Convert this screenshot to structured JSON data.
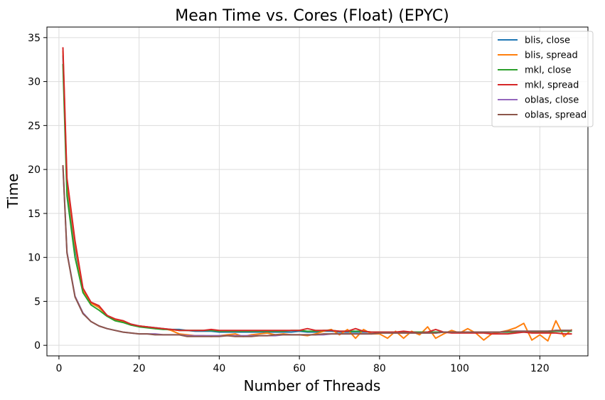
{
  "chart_data": {
    "type": "line",
    "title": "Mean Time vs. Cores (Float) (EPYC)",
    "xlabel": "Number of Threads",
    "ylabel": "Time",
    "xlim": [
      -3,
      132
    ],
    "ylim": [
      -1.2,
      36.2
    ],
    "xticks": [
      0,
      20,
      40,
      60,
      80,
      100,
      120
    ],
    "yticks": [
      0,
      5,
      10,
      15,
      20,
      25,
      30,
      35
    ],
    "grid": true,
    "legend_position": "top-right",
    "series": [
      {
        "name": "blis, close",
        "color": "#1f77b4",
        "x": [
          1,
          2,
          4,
          6,
          8,
          10,
          12,
          14,
          16,
          18,
          20,
          22,
          24,
          26,
          28,
          30,
          32,
          34,
          36,
          38,
          40,
          42,
          44,
          46,
          48,
          50,
          52,
          54,
          56,
          58,
          60,
          62,
          64,
          66,
          68,
          70,
          72,
          74,
          76,
          78,
          80,
          82,
          84,
          86,
          88,
          90,
          92,
          94,
          96,
          98,
          100,
          102,
          104,
          106,
          108,
          110,
          112,
          114,
          116,
          118,
          120,
          122,
          124,
          126,
          128
        ],
        "y": [
          33.0,
          18.0,
          11.0,
          6.3,
          4.8,
          4.4,
          3.4,
          2.9,
          2.7,
          2.4,
          2.2,
          2.1,
          2.0,
          1.9,
          1.8,
          1.8,
          1.7,
          1.6,
          1.6,
          1.6,
          1.5,
          1.5,
          1.5,
          1.5,
          1.5,
          1.5,
          1.5,
          1.5,
          1.5,
          1.5,
          1.6,
          1.5,
          1.5,
          1.6,
          1.6,
          1.5,
          1.5,
          1.5,
          1.5,
          1.5,
          1.5,
          1.5,
          1.5,
          1.5,
          1.5,
          1.5,
          1.5,
          1.5,
          1.5,
          1.5,
          1.5,
          1.5,
          1.5,
          1.5,
          1.5,
          1.5,
          1.5,
          1.6,
          1.6,
          1.6,
          1.6,
          1.6,
          1.6,
          1.6,
          1.7
        ]
      },
      {
        "name": "blis, spread",
        "color": "#ff7f0e",
        "x": [
          1,
          2,
          4,
          6,
          8,
          10,
          12,
          14,
          16,
          18,
          20,
          22,
          24,
          26,
          28,
          30,
          32,
          34,
          36,
          38,
          40,
          42,
          44,
          46,
          48,
          50,
          52,
          54,
          56,
          58,
          60,
          62,
          64,
          66,
          68,
          70,
          72,
          74,
          76,
          78,
          80,
          82,
          84,
          86,
          88,
          90,
          92,
          94,
          96,
          98,
          100,
          102,
          104,
          106,
          108,
          110,
          112,
          114,
          116,
          118,
          120,
          122,
          124,
          126,
          128
        ],
        "y": [
          33.5,
          18.5,
          11.5,
          6.2,
          4.8,
          4.3,
          3.4,
          2.9,
          2.7,
          2.3,
          2.2,
          2.1,
          1.9,
          1.9,
          1.7,
          1.3,
          1.2,
          1.1,
          1.1,
          1.0,
          1.1,
          1.2,
          1.3,
          1.0,
          1.2,
          1.3,
          1.4,
          1.2,
          1.3,
          1.2,
          1.2,
          1.1,
          1.3,
          1.6,
          1.8,
          1.2,
          1.8,
          0.8,
          1.8,
          1.3,
          1.3,
          0.8,
          1.6,
          0.8,
          1.6,
          1.2,
          2.1,
          0.8,
          1.3,
          1.7,
          1.4,
          1.9,
          1.4,
          0.6,
          1.3,
          1.5,
          1.7,
          2.0,
          2.5,
          0.6,
          1.2,
          0.5,
          2.8,
          1.0,
          1.8
        ]
      },
      {
        "name": "mkl, close",
        "color": "#2ca02c",
        "x": [
          1,
          2,
          4,
          6,
          8,
          10,
          12,
          14,
          16,
          18,
          20,
          22,
          24,
          26,
          28,
          30,
          32,
          34,
          36,
          38,
          40,
          42,
          44,
          46,
          48,
          50,
          52,
          54,
          56,
          58,
          60,
          62,
          64,
          66,
          68,
          70,
          72,
          74,
          76,
          78,
          80,
          82,
          84,
          86,
          88,
          90,
          92,
          94,
          96,
          98,
          100,
          102,
          104,
          106,
          108,
          110,
          112,
          114,
          116,
          118,
          120,
          122,
          124,
          126,
          128
        ],
        "y": [
          32.0,
          17.0,
          10.0,
          6.0,
          4.6,
          4.0,
          3.3,
          2.8,
          2.6,
          2.3,
          2.1,
          2.0,
          1.9,
          1.8,
          1.8,
          1.7,
          1.7,
          1.7,
          1.7,
          1.7,
          1.6,
          1.6,
          1.6,
          1.6,
          1.6,
          1.6,
          1.6,
          1.6,
          1.6,
          1.7,
          1.7,
          1.6,
          1.6,
          1.7,
          1.7,
          1.6,
          1.6,
          1.6,
          1.6,
          1.5,
          1.5,
          1.5,
          1.5,
          1.5,
          1.5,
          1.5,
          1.5,
          1.5,
          1.5,
          1.5,
          1.5,
          1.5,
          1.5,
          1.5,
          1.5,
          1.5,
          1.5,
          1.5,
          1.5,
          1.5,
          1.5,
          1.5,
          1.6,
          1.6,
          1.6
        ]
      },
      {
        "name": "mkl, spread",
        "color": "#d62728",
        "x": [
          1,
          2,
          4,
          6,
          8,
          10,
          12,
          14,
          16,
          18,
          20,
          22,
          24,
          26,
          28,
          30,
          32,
          34,
          36,
          38,
          40,
          42,
          44,
          46,
          48,
          50,
          52,
          54,
          56,
          58,
          60,
          62,
          64,
          66,
          68,
          70,
          72,
          74,
          76,
          78,
          80,
          82,
          84,
          86,
          88,
          90,
          92,
          94,
          96,
          98,
          100,
          102,
          104,
          106,
          108,
          110,
          112,
          114,
          116,
          118,
          120,
          122,
          124,
          126,
          128
        ],
        "y": [
          33.9,
          19.0,
          11.9,
          6.5,
          4.9,
          4.5,
          3.4,
          3.0,
          2.8,
          2.4,
          2.2,
          2.1,
          2.0,
          1.9,
          1.8,
          1.7,
          1.7,
          1.7,
          1.7,
          1.8,
          1.7,
          1.7,
          1.7,
          1.7,
          1.7,
          1.7,
          1.7,
          1.7,
          1.7,
          1.7,
          1.7,
          1.9,
          1.7,
          1.7,
          1.7,
          1.6,
          1.6,
          1.9,
          1.6,
          1.5,
          1.5,
          1.5,
          1.5,
          1.6,
          1.5,
          1.4,
          1.5,
          1.8,
          1.5,
          1.4,
          1.4,
          1.4,
          1.4,
          1.4,
          1.3,
          1.3,
          1.3,
          1.4,
          1.5,
          1.4,
          1.4,
          1.4,
          1.4,
          1.3,
          1.3
        ]
      },
      {
        "name": "oblas, close",
        "color": "#9467bd",
        "x": [
          1,
          2,
          4,
          6,
          8,
          10,
          12,
          14,
          16,
          18,
          20,
          22,
          24,
          26,
          28,
          30,
          32,
          34,
          36,
          38,
          40,
          42,
          44,
          46,
          48,
          50,
          52,
          54,
          56,
          58,
          60,
          62,
          64,
          66,
          68,
          70,
          72,
          74,
          76,
          78,
          80,
          82,
          84,
          86,
          88,
          90,
          92,
          94,
          96,
          98,
          100,
          102,
          104,
          106,
          108,
          110,
          112,
          114,
          116,
          118,
          120,
          122,
          124,
          126,
          128
        ],
        "y": [
          20.4,
          10.6,
          5.6,
          3.7,
          2.7,
          2.2,
          1.9,
          1.7,
          1.5,
          1.4,
          1.3,
          1.3,
          1.3,
          1.2,
          1.2,
          1.2,
          1.1,
          1.1,
          1.1,
          1.1,
          1.1,
          1.1,
          1.1,
          1.1,
          1.1,
          1.1,
          1.1,
          1.1,
          1.2,
          1.2,
          1.2,
          1.2,
          1.2,
          1.2,
          1.3,
          1.3,
          1.3,
          1.3,
          1.3,
          1.3,
          1.4,
          1.4,
          1.4,
          1.4,
          1.4,
          1.4,
          1.4,
          1.4,
          1.5,
          1.5,
          1.5,
          1.5,
          1.5,
          1.5,
          1.5,
          1.5,
          1.6,
          1.6,
          1.6,
          1.6,
          1.6,
          1.6,
          1.7,
          1.7,
          1.7
        ]
      },
      {
        "name": "oblas, spread",
        "color": "#8c564b",
        "x": [
          1,
          2,
          4,
          6,
          8,
          10,
          12,
          14,
          16,
          18,
          20,
          22,
          24,
          26,
          28,
          30,
          32,
          34,
          36,
          38,
          40,
          42,
          44,
          46,
          48,
          50,
          52,
          54,
          56,
          58,
          60,
          62,
          64,
          66,
          68,
          70,
          72,
          74,
          76,
          78,
          80,
          82,
          84,
          86,
          88,
          90,
          92,
          94,
          96,
          98,
          100,
          102,
          104,
          106,
          108,
          110,
          112,
          114,
          116,
          118,
          120,
          122,
          124,
          126,
          128
        ],
        "y": [
          20.5,
          10.5,
          5.5,
          3.6,
          2.7,
          2.2,
          1.9,
          1.7,
          1.5,
          1.4,
          1.3,
          1.3,
          1.2,
          1.2,
          1.2,
          1.2,
          1.0,
          1.0,
          1.0,
          1.0,
          1.0,
          1.1,
          1.0,
          1.0,
          1.0,
          1.1,
          1.1,
          1.2,
          1.2,
          1.2,
          1.2,
          1.2,
          1.2,
          1.3,
          1.3,
          1.3,
          1.3,
          1.3,
          1.3,
          1.3,
          1.4,
          1.4,
          1.4,
          1.4,
          1.4,
          1.4,
          1.4,
          1.4,
          1.5,
          1.5,
          1.5,
          1.5,
          1.5,
          1.5,
          1.5,
          1.5,
          1.6,
          1.6,
          1.6,
          1.6,
          1.6,
          1.6,
          1.7,
          1.7,
          1.7
        ]
      }
    ]
  }
}
